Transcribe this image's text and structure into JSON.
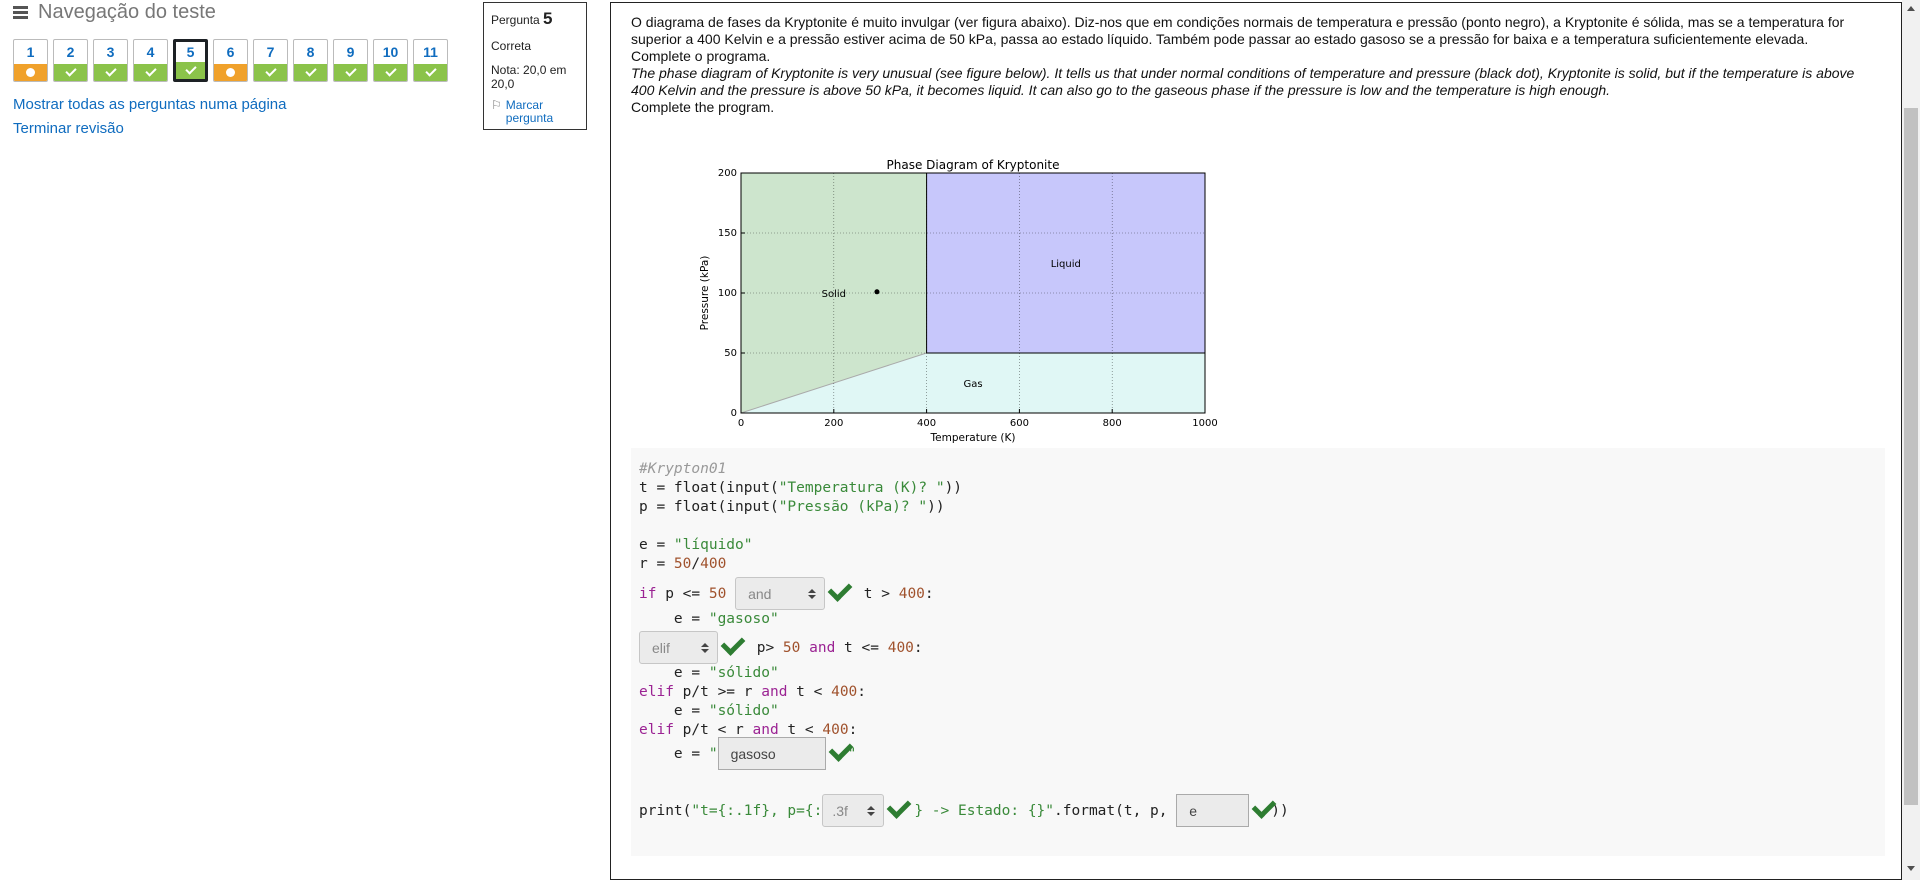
{
  "nav": {
    "title": "Navegação do teste",
    "questions": [
      {
        "num": "1",
        "status": "partial"
      },
      {
        "num": "2",
        "status": "correct"
      },
      {
        "num": "3",
        "status": "correct"
      },
      {
        "num": "4",
        "status": "correct"
      },
      {
        "num": "5",
        "status": "correct",
        "current": true
      },
      {
        "num": "6",
        "status": "partial"
      },
      {
        "num": "7",
        "status": "correct"
      },
      {
        "num": "8",
        "status": "correct"
      },
      {
        "num": "9",
        "status": "correct"
      },
      {
        "num": "10",
        "status": "correct"
      },
      {
        "num": "11",
        "status": "correct"
      }
    ],
    "show_all_link": "Mostrar todas as perguntas numa página",
    "finish_link": "Terminar revisão"
  },
  "info": {
    "question_label": "Pergunta",
    "question_number": "5",
    "state": "Correta",
    "grade": "Nota: 20,0 em 20,0",
    "flag": "Marcar pergunta"
  },
  "question": {
    "text_pt_1": "O diagrama de fases da Kryptonite é muito invulgar (ver figura abaixo). Diz-nos que em condições normais de temperatura e pressão (ponto negro), a Kryptonite é sólida, mas se a temperatura for superior a 400 Kelvin e a pressão estiver acima de 50 kPa, passa ao estado líquido. Também pode passar ao estado gasoso se a pressão for baixa e a temperatura suficientemente elevada.",
    "text_pt_2": "Complete o programa.",
    "text_en_1": "The phase diagram of Kryptonite is very unusual (see figure below). It tells us that under normal conditions of temperature and pressure (black dot), Kryptonite is solid, but if the temperature is above 400 Kelvin and the pressure is above 50 kPa, it becomes liquid. It can also go to the gaseous phase if the pressure is low and the temperature is high enough.",
    "text_en_2": "Complete the program."
  },
  "chart_data": {
    "type": "area",
    "title": "Phase Diagram of Kryptonite",
    "xlabel": "Temperature (K)",
    "ylabel": "Pressure (kPa)",
    "xlim": [
      0,
      1000
    ],
    "ylim": [
      0,
      200
    ],
    "xticks": [
      0,
      200,
      400,
      600,
      800,
      1000
    ],
    "yticks": [
      0,
      50,
      100,
      150,
      200
    ],
    "grid": true,
    "regions": [
      {
        "name": "Solid",
        "color": "#cde5cd",
        "polygon": [
          [
            0,
            0
          ],
          [
            400,
            50
          ],
          [
            400,
            200
          ],
          [
            0,
            200
          ]
        ],
        "label_at": [
          200,
          100
        ]
      },
      {
        "name": "Liquid",
        "color": "#c7c7fb",
        "polygon": [
          [
            400,
            50
          ],
          [
            1000,
            50
          ],
          [
            1000,
            200
          ],
          [
            400,
            200
          ]
        ],
        "label_at": [
          700,
          125
        ]
      },
      {
        "name": "Gas",
        "color": "#e0f7f5",
        "polygon": [
          [
            0,
            0
          ],
          [
            1000,
            0
          ],
          [
            1000,
            50
          ],
          [
            400,
            50
          ]
        ],
        "label_at": [
          500,
          25
        ]
      }
    ],
    "boundary_color": "#aaaaaa",
    "points": [
      {
        "x": 293,
        "y": 101
      }
    ]
  },
  "code": {
    "comment": "#Krypton01",
    "l_t1": "t = float(input(",
    "l_t2": "\"Temperatura (K)? \"",
    "l_t3": "))",
    "l_p1": "p = float(input(",
    "l_p2": "\"Pressão (kPa)? \"",
    "l_p3": "))",
    "l_e1": "e = ",
    "l_e2": "\"líquido\"",
    "l_r1": "r = ",
    "l_r2": "50",
    "l_r3": "/",
    "l_r4": "400",
    "l_if_kw": "if",
    "l_if_a": " p <= ",
    "l_if_n": "50",
    "l_if_b": " t > ",
    "l_if_n2": "400",
    "l_if_c": ":",
    "blank1_value": "and",
    "l_gas1": "    e = ",
    "l_gas2": "\"gasoso\"",
    "blank2_value": "elif",
    "l_el_a": " p> ",
    "l_el_n": "50",
    "l_el_and": "and",
    "l_el_b": " t <= ",
    "l_el_n2": "400",
    "l_el_c": ":",
    "l_sol1": "    e = ",
    "l_sol2": "\"sólido\"",
    "l_e3_kw": "elif",
    "l_e3_a": " p/t >= r ",
    "l_e3_and": "and",
    "l_e3_b": " t < ",
    "l_e3_n": "400",
    "l_e3_c": ":",
    "l_sol3": "    e = ",
    "l_sol4": "\"sólido\"",
    "l_e4_kw": "elif",
    "l_e4_a": " p/t < r ",
    "l_e4_and": "and",
    "l_e4_b": " t < ",
    "l_e4_n": "400",
    "l_e4_c": ":",
    "l_last1": "    e = ",
    "l_last2": "\"",
    "blank3_value": "gasoso",
    "l_last3": "\"",
    "l_pr1": "print(",
    "l_pr2": "\"t={:.1f}, p={:",
    "blank4_value": ".3f",
    "l_pr3": "} -> Estado: {}\"",
    "l_pr4": ".format(t, p, ",
    "blank5_value": "e",
    "l_pr5": "))"
  },
  "colors": {
    "link": "#0f6cbf",
    "correct": "#8bc34a",
    "partial": "#f0a12b",
    "check": "#2e7d32"
  }
}
